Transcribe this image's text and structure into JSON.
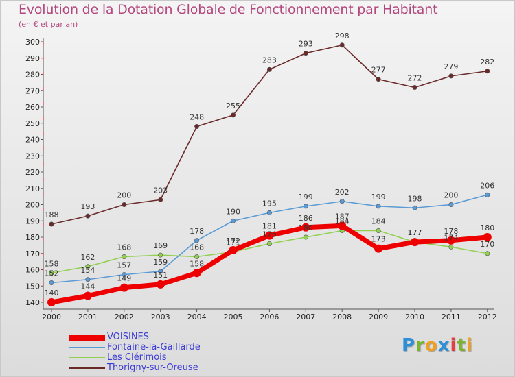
{
  "title": "Evolution de la Dotation Globale de Fonctionnement par Habitant",
  "subtitle": "(en € et par an)",
  "logo": {
    "letters": [
      "P",
      "r",
      "o",
      "x",
      "i",
      "t",
      "i"
    ],
    "colors": [
      "#2d8fd6",
      "#7ab32e",
      "#f0a020",
      "#2d8fd6",
      "#e04040",
      "#7ab32e",
      "#f0a020"
    ]
  },
  "chart_data": {
    "type": "line",
    "title": "Evolution de la Dotation Globale de Fonctionnement par Habitant",
    "subtitle": "(en € et par an)",
    "xlabel": "",
    "ylabel": "",
    "x": [
      "2000",
      "2001",
      "2002",
      "2003",
      "2004",
      "2005",
      "2006",
      "2007",
      "2008",
      "2009",
      "2010",
      "2011",
      "2012"
    ],
    "ylim": [
      140,
      300
    ],
    "yticks": [
      140,
      150,
      160,
      170,
      180,
      190,
      200,
      210,
      220,
      230,
      240,
      250,
      260,
      270,
      280,
      290,
      300
    ],
    "grid": false,
    "legend_position": "bottom-left",
    "series": [
      {
        "name": "VOISINES",
        "color": "#ee0000",
        "values": [
          140,
          144,
          149,
          151,
          158,
          172,
          181,
          186,
          187,
          173,
          177,
          178,
          180
        ]
      },
      {
        "name": "Fontaine-la-Gaillarde",
        "color": "#5b9bd5",
        "values": [
          152,
          154,
          157,
          159,
          178,
          190,
          195,
          199,
          202,
          199,
          198,
          200,
          206
        ]
      },
      {
        "name": "Les Clérimois",
        "color": "#92d050",
        "values": [
          158,
          162,
          168,
          169,
          168,
          171,
          176,
          180,
          184,
          184,
          177,
          174,
          170
        ]
      },
      {
        "name": "Thorigny-sur-Oreuse",
        "color": "#6b2a2a",
        "values": [
          188,
          193,
          200,
          203,
          248,
          255,
          283,
          293,
          298,
          277,
          272,
          279,
          282
        ]
      }
    ]
  }
}
